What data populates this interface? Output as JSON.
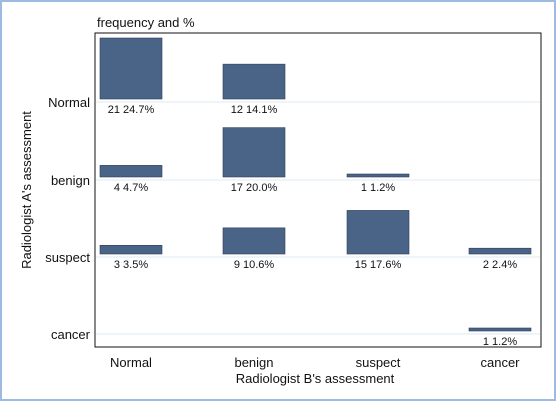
{
  "chart_data": {
    "type": "bar",
    "subtitle": "frequency and %",
    "xlabel": "Radiologist B's assessment",
    "ylabel": "Radiologist A's assessment",
    "x_categories": [
      "Normal",
      "benign",
      "suspect",
      "cancer"
    ],
    "y_categories": [
      "Normal",
      "benign",
      "suspect",
      "cancer"
    ],
    "grid": true,
    "bar_color": "#4a6488",
    "cells": [
      {
        "row": "Normal",
        "col": "Normal",
        "count": 21,
        "percent": 24.7,
        "label": "21 24.7%"
      },
      {
        "row": "Normal",
        "col": "benign",
        "count": 12,
        "percent": 14.1,
        "label": "12 14.1%"
      },
      {
        "row": "benign",
        "col": "Normal",
        "count": 4,
        "percent": 4.7,
        "label": "4 4.7%"
      },
      {
        "row": "benign",
        "col": "benign",
        "count": 17,
        "percent": 20.0,
        "label": "17 20.0%"
      },
      {
        "row": "benign",
        "col": "suspect",
        "count": 1,
        "percent": 1.2,
        "label": "1 1.2%"
      },
      {
        "row": "suspect",
        "col": "Normal",
        "count": 3,
        "percent": 3.5,
        "label": "3 3.5%"
      },
      {
        "row": "suspect",
        "col": "benign",
        "count": 9,
        "percent": 10.6,
        "label": "9 10.6%"
      },
      {
        "row": "suspect",
        "col": "suspect",
        "count": 15,
        "percent": 17.6,
        "label": "15 17.6%"
      },
      {
        "row": "suspect",
        "col": "cancer",
        "count": 2,
        "percent": 2.4,
        "label": "2 2.4%"
      },
      {
        "row": "cancer",
        "col": "cancer",
        "count": 1,
        "percent": 1.2,
        "label": "1 1.2%"
      }
    ]
  }
}
